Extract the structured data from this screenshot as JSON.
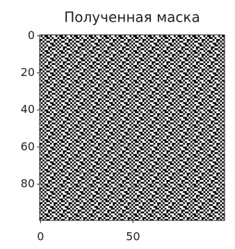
{
  "chart_data": {
    "type": "image",
    "title": "Полученная маска",
    "xlim": [
      -0.5,
      99.5
    ],
    "ylim": [
      99.5,
      -0.5
    ],
    "xticks": [
      0,
      50
    ],
    "yticks": [
      0,
      20,
      40,
      60,
      80
    ]
  }
}
